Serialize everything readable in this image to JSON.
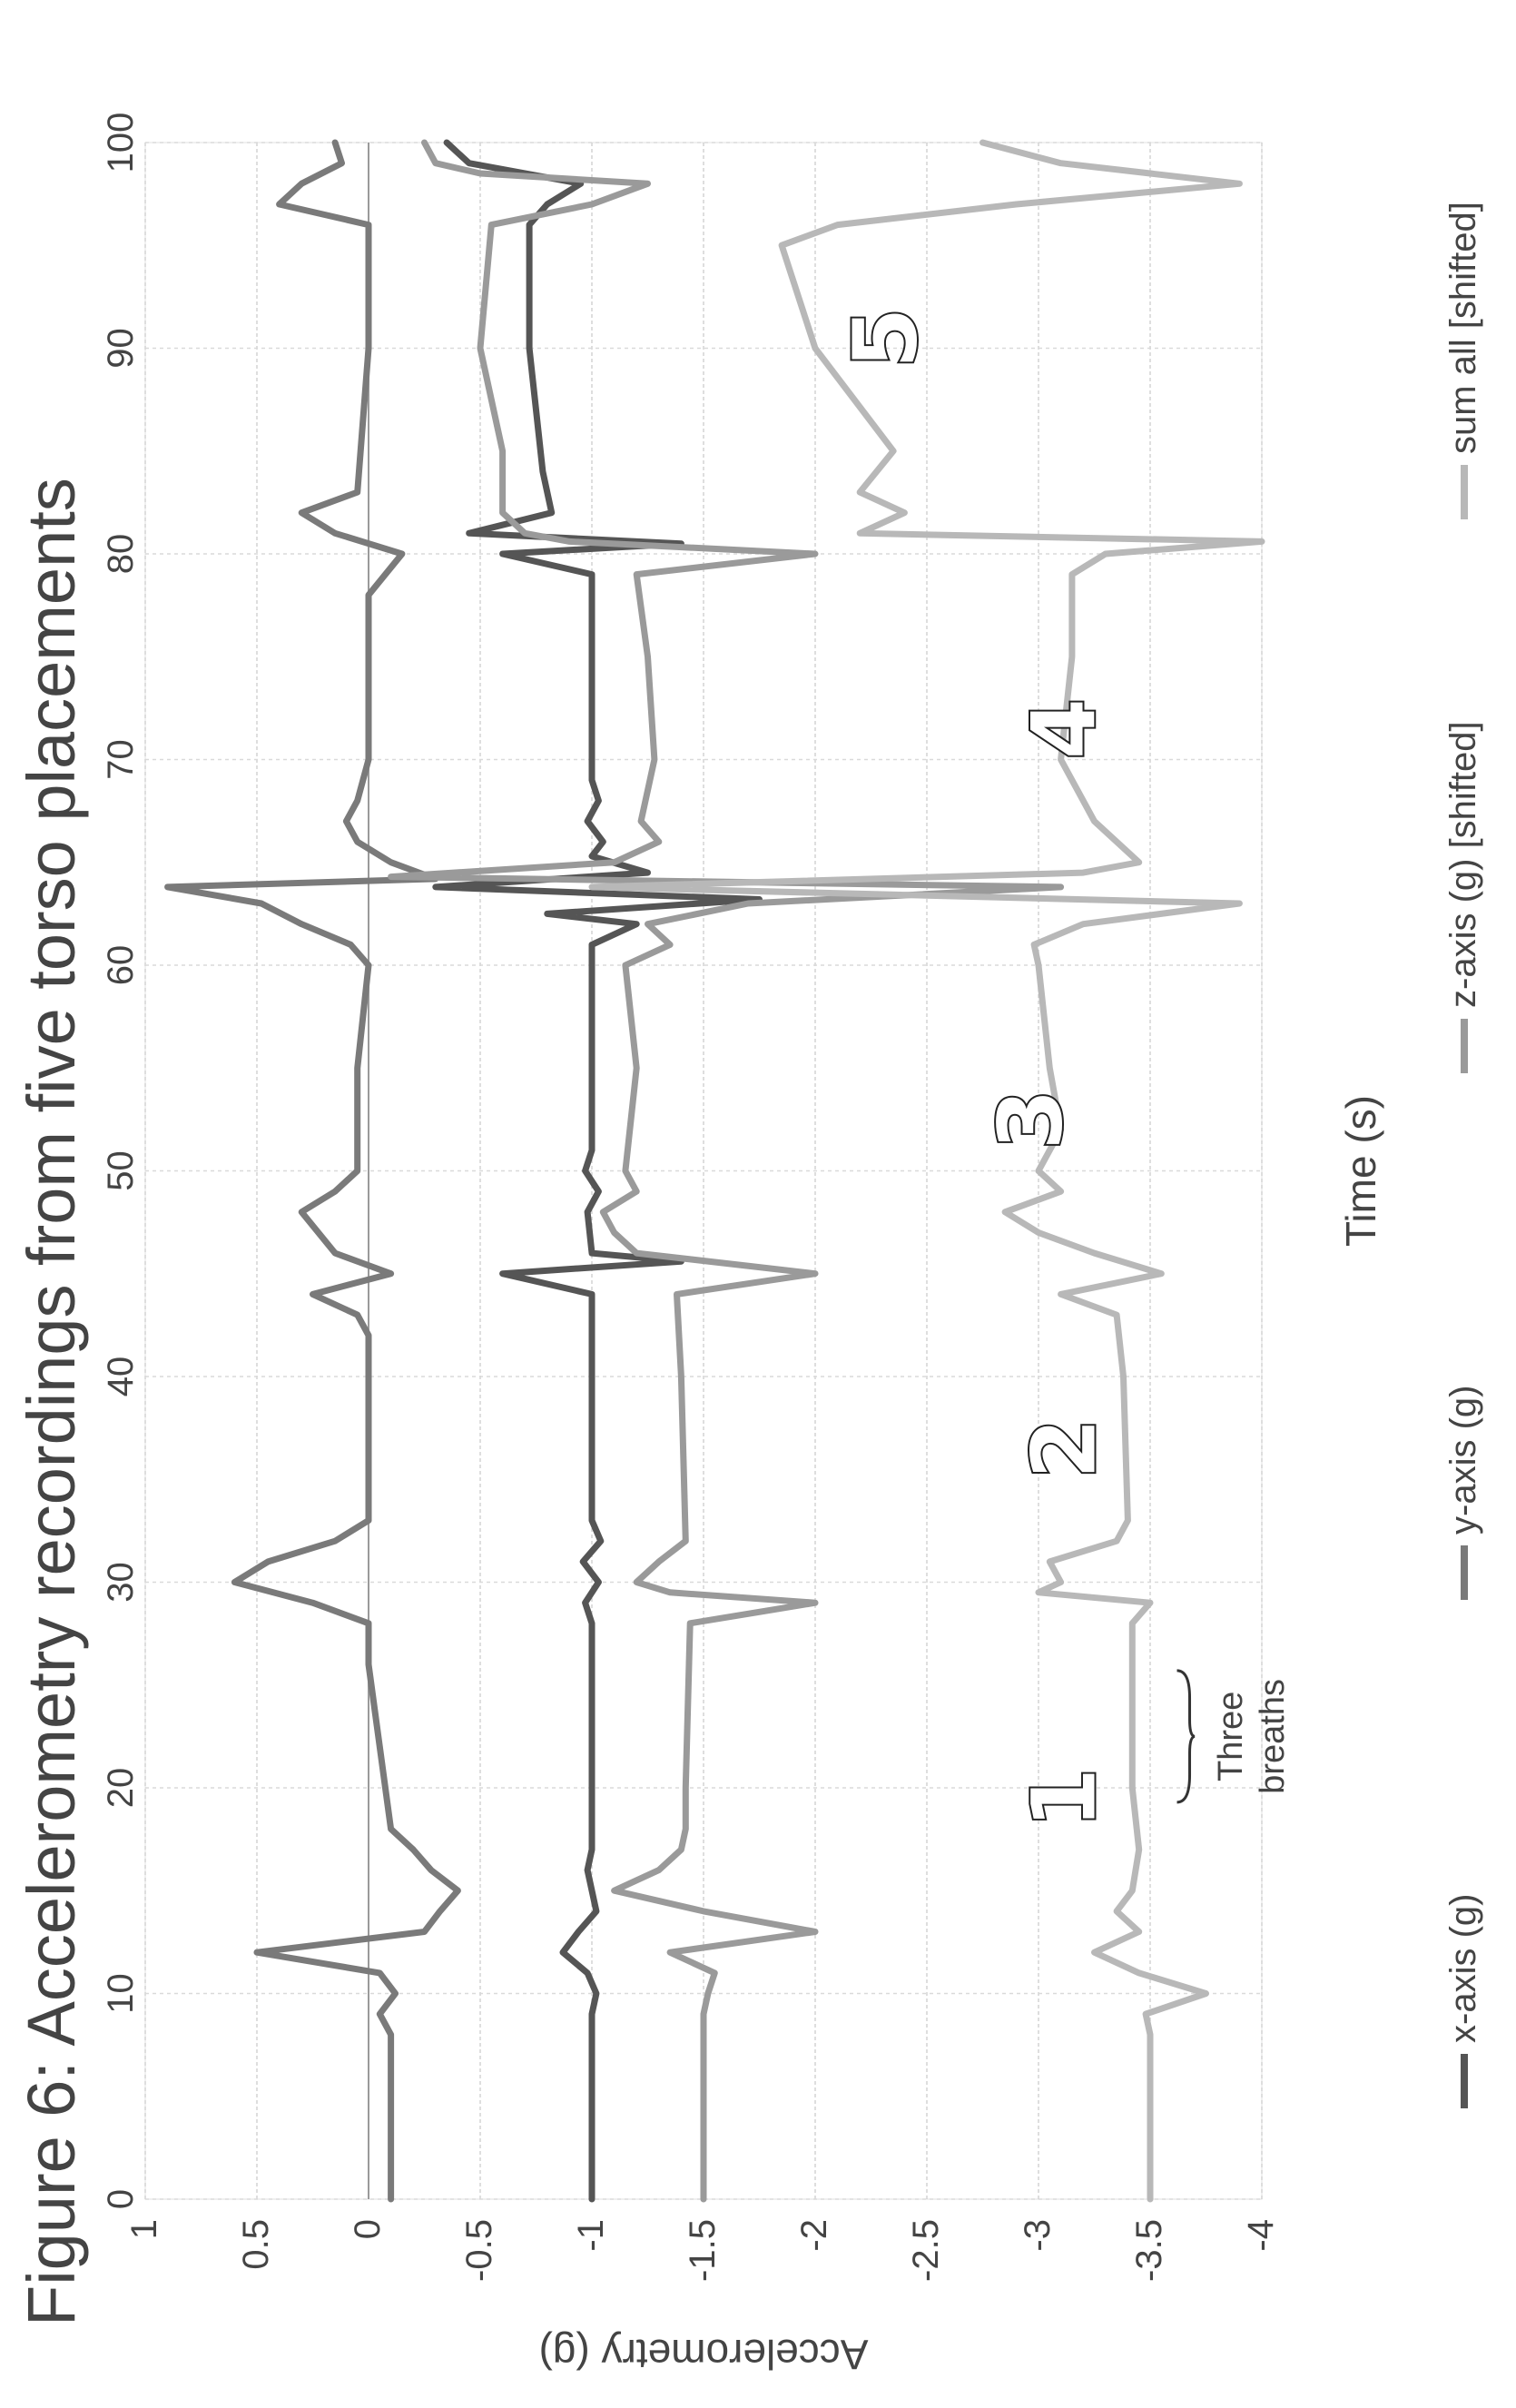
{
  "chart_data": {
    "type": "line",
    "title": "Figure 6:  Accelerometry recordings from five torso placements",
    "xlabel": "Time (s)",
    "ylabel": "Accelerometry (g)",
    "xlim": [
      0,
      100
    ],
    "ylim": [
      -4,
      1
    ],
    "x_ticks": [
      "0",
      "10",
      "20",
      "30",
      "40",
      "50",
      "60",
      "70",
      "80",
      "90",
      "100"
    ],
    "y_ticks": [
      "1",
      "0.5",
      "0",
      "-0.5",
      "-1",
      "-1.5",
      "-2",
      "-2.5",
      "-3",
      "-3.5",
      "-4"
    ],
    "grid": true,
    "legend_position": "bottom",
    "series": [
      {
        "name": "x-axis (g)",
        "color": "#555555",
        "points": [
          [
            0,
            -1
          ],
          [
            9,
            -1
          ],
          [
            10,
            -1.02
          ],
          [
            11,
            -0.98
          ],
          [
            12,
            -0.87
          ],
          [
            13,
            -0.94
          ],
          [
            14,
            -1.02
          ],
          [
            15,
            -1
          ],
          [
            16,
            -0.98
          ],
          [
            17,
            -1
          ],
          [
            20,
            -1
          ],
          [
            28,
            -1
          ],
          [
            29,
            -0.97
          ],
          [
            30,
            -1.03
          ],
          [
            31,
            -0.96
          ],
          [
            32,
            -1.04
          ],
          [
            33,
            -1
          ],
          [
            44,
            -1
          ],
          [
            45,
            -0.6
          ],
          [
            45.6,
            -1.4
          ],
          [
            46,
            -1
          ],
          [
            48,
            -0.98
          ],
          [
            49,
            -1.03
          ],
          [
            50,
            -0.97
          ],
          [
            51,
            -1
          ],
          [
            61,
            -1
          ],
          [
            62,
            -1.2
          ],
          [
            62.5,
            -0.8
          ],
          [
            63.2,
            -1.75
          ],
          [
            63.8,
            -0.3
          ],
          [
            64.5,
            -1.25
          ],
          [
            65.3,
            -1
          ],
          [
            66,
            -1.05
          ],
          [
            67,
            -0.98
          ],
          [
            68,
            -1.03
          ],
          [
            69,
            -1
          ],
          [
            79,
            -1
          ],
          [
            80,
            -0.6
          ],
          [
            80.5,
            -1.4
          ],
          [
            81,
            -0.45
          ],
          [
            82,
            -0.82
          ],
          [
            84,
            -0.78
          ],
          [
            90,
            -0.72
          ],
          [
            96,
            -0.72
          ],
          [
            97,
            -0.8
          ],
          [
            98,
            -0.95
          ],
          [
            99,
            -0.45
          ],
          [
            100,
            -0.35
          ]
        ]
      },
      {
        "name": "y-axis (g)",
        "color": "#7a7a7a",
        "points": [
          [
            0,
            -0.1
          ],
          [
            8,
            -0.1
          ],
          [
            9,
            -0.05
          ],
          [
            10,
            -0.12
          ],
          [
            11,
            -0.05
          ],
          [
            12,
            0.5
          ],
          [
            13,
            -0.25
          ],
          [
            14,
            -0.32
          ],
          [
            15,
            -0.4
          ],
          [
            16,
            -0.28
          ],
          [
            17,
            -0.2
          ],
          [
            18,
            -0.1
          ],
          [
            22,
            -0.05
          ],
          [
            26,
            0
          ],
          [
            28,
            0
          ],
          [
            29,
            0.25
          ],
          [
            30,
            0.6
          ],
          [
            31,
            0.45
          ],
          [
            32,
            0.15
          ],
          [
            33,
            0
          ],
          [
            40,
            0
          ],
          [
            42,
            0
          ],
          [
            43,
            0.05
          ],
          [
            44,
            0.25
          ],
          [
            45,
            -0.1
          ],
          [
            46,
            0.15
          ],
          [
            48,
            0.3
          ],
          [
            49,
            0.15
          ],
          [
            50,
            0.05
          ],
          [
            55,
            0.05
          ],
          [
            60,
            0
          ],
          [
            61,
            0.08
          ],
          [
            62,
            0.3
          ],
          [
            63,
            0.48
          ],
          [
            63.8,
            0.9
          ],
          [
            64.2,
            -0.3
          ],
          [
            65,
            -0.1
          ],
          [
            66,
            0.05
          ],
          [
            67,
            0.1
          ],
          [
            68,
            0.05
          ],
          [
            70,
            0
          ],
          [
            78,
            0
          ],
          [
            80,
            -0.15
          ],
          [
            81,
            0.15
          ],
          [
            82,
            0.3
          ],
          [
            83,
            0.05
          ],
          [
            90,
            0
          ],
          [
            96,
            0
          ],
          [
            97,
            0.4
          ],
          [
            98,
            0.3
          ],
          [
            99,
            0.12
          ],
          [
            100,
            0.15
          ]
        ]
      },
      {
        "name": "z-axis (g) [shifted]",
        "color": "#9a9a9a",
        "points": [
          [
            0,
            -1.5
          ],
          [
            9,
            -1.5
          ],
          [
            10,
            -1.52
          ],
          [
            11,
            -1.55
          ],
          [
            12,
            -1.35
          ],
          [
            13,
            -2
          ],
          [
            14,
            -1.5
          ],
          [
            15,
            -1.1
          ],
          [
            16,
            -1.3
          ],
          [
            17,
            -1.4
          ],
          [
            18,
            -1.42
          ],
          [
            20,
            -1.42
          ],
          [
            28,
            -1.44
          ],
          [
            29,
            -2.0
          ],
          [
            29.5,
            -1.35
          ],
          [
            30,
            -1.2
          ],
          [
            31,
            -1.3
          ],
          [
            32,
            -1.42
          ],
          [
            40,
            -1.4
          ],
          [
            44,
            -1.38
          ],
          [
            45,
            -2
          ],
          [
            46,
            -1.2
          ],
          [
            47,
            -1.1
          ],
          [
            48,
            -1.05
          ],
          [
            49,
            -1.2
          ],
          [
            50,
            -1.15
          ],
          [
            55,
            -1.2
          ],
          [
            60,
            -1.15
          ],
          [
            61,
            -1.35
          ],
          [
            62,
            -1.25
          ],
          [
            63,
            -1.7
          ],
          [
            63.8,
            -3.1
          ],
          [
            64.3,
            -0.1
          ],
          [
            65,
            -1.1
          ],
          [
            66,
            -1.3
          ],
          [
            67,
            -1.22
          ],
          [
            70,
            -1.28
          ],
          [
            75,
            -1.25
          ],
          [
            79,
            -1.2
          ],
          [
            80,
            -2
          ],
          [
            80.6,
            -0.9
          ],
          [
            81,
            -0.7
          ],
          [
            82,
            -0.6
          ],
          [
            85,
            -0.6
          ],
          [
            90,
            -0.5
          ],
          [
            96,
            -0.55
          ],
          [
            97,
            -1.0
          ],
          [
            98,
            -1.25
          ],
          [
            98.5,
            -0.5
          ],
          [
            99,
            -0.3
          ],
          [
            100,
            -0.25
          ]
        ]
      },
      {
        "name": "sum all [shifted]",
        "color": "#b8b8b8",
        "points": [
          [
            0,
            -3.5
          ],
          [
            8,
            -3.5
          ],
          [
            9,
            -3.48
          ],
          [
            10,
            -3.75
          ],
          [
            11,
            -3.45
          ],
          [
            12,
            -3.25
          ],
          [
            13,
            -3.45
          ],
          [
            14,
            -3.35
          ],
          [
            15,
            -3.42
          ],
          [
            17,
            -3.45
          ],
          [
            20,
            -3.42
          ],
          [
            25,
            -3.42
          ],
          [
            28,
            -3.42
          ],
          [
            29,
            -3.5
          ],
          [
            29.5,
            -3.0
          ],
          [
            30,
            -3.1
          ],
          [
            31,
            -3.05
          ],
          [
            32,
            -3.35
          ],
          [
            33,
            -3.4
          ],
          [
            40,
            -3.38
          ],
          [
            43,
            -3.35
          ],
          [
            44,
            -3.1
          ],
          [
            45,
            -3.55
          ],
          [
            46,
            -3.25
          ],
          [
            47,
            -3.0
          ],
          [
            48,
            -2.85
          ],
          [
            49,
            -3.1
          ],
          [
            50,
            -3.0
          ],
          [
            52,
            -3.1
          ],
          [
            55,
            -3.05
          ],
          [
            60,
            -3.0
          ],
          [
            61,
            -2.98
          ],
          [
            62,
            -3.2
          ],
          [
            63,
            -3.9
          ],
          [
            63.8,
            -1.0
          ],
          [
            64.5,
            -3.2
          ],
          [
            65,
            -3.45
          ],
          [
            66,
            -3.35
          ],
          [
            67,
            -3.25
          ],
          [
            70,
            -3.1
          ],
          [
            75,
            -3.15
          ],
          [
            79,
            -3.15
          ],
          [
            80,
            -3.3
          ],
          [
            80.6,
            -4
          ],
          [
            81,
            -2.2
          ],
          [
            82,
            -2.4
          ],
          [
            83,
            -2.2
          ],
          [
            85,
            -2.35
          ],
          [
            90,
            -2.0
          ],
          [
            95,
            -1.85
          ],
          [
            96,
            -2.1
          ],
          [
            97,
            -2.9
          ],
          [
            98,
            -3.9
          ],
          [
            99,
            -3.1
          ],
          [
            100,
            -2.75
          ]
        ]
      }
    ],
    "annotations": [
      {
        "label": "1",
        "x": 19.5,
        "y": -3.25
      },
      {
        "label": "2",
        "x": 36.5,
        "y": -3.25
      },
      {
        "label": "3",
        "x": 52.5,
        "y": -3.1
      },
      {
        "label": "4",
        "x": 71.5,
        "y": -3.25
      },
      {
        "label": "5",
        "x": 90.5,
        "y": -2.45
      },
      {
        "label": "Three breaths",
        "x": 22.5,
        "y": -3.8
      }
    ]
  }
}
